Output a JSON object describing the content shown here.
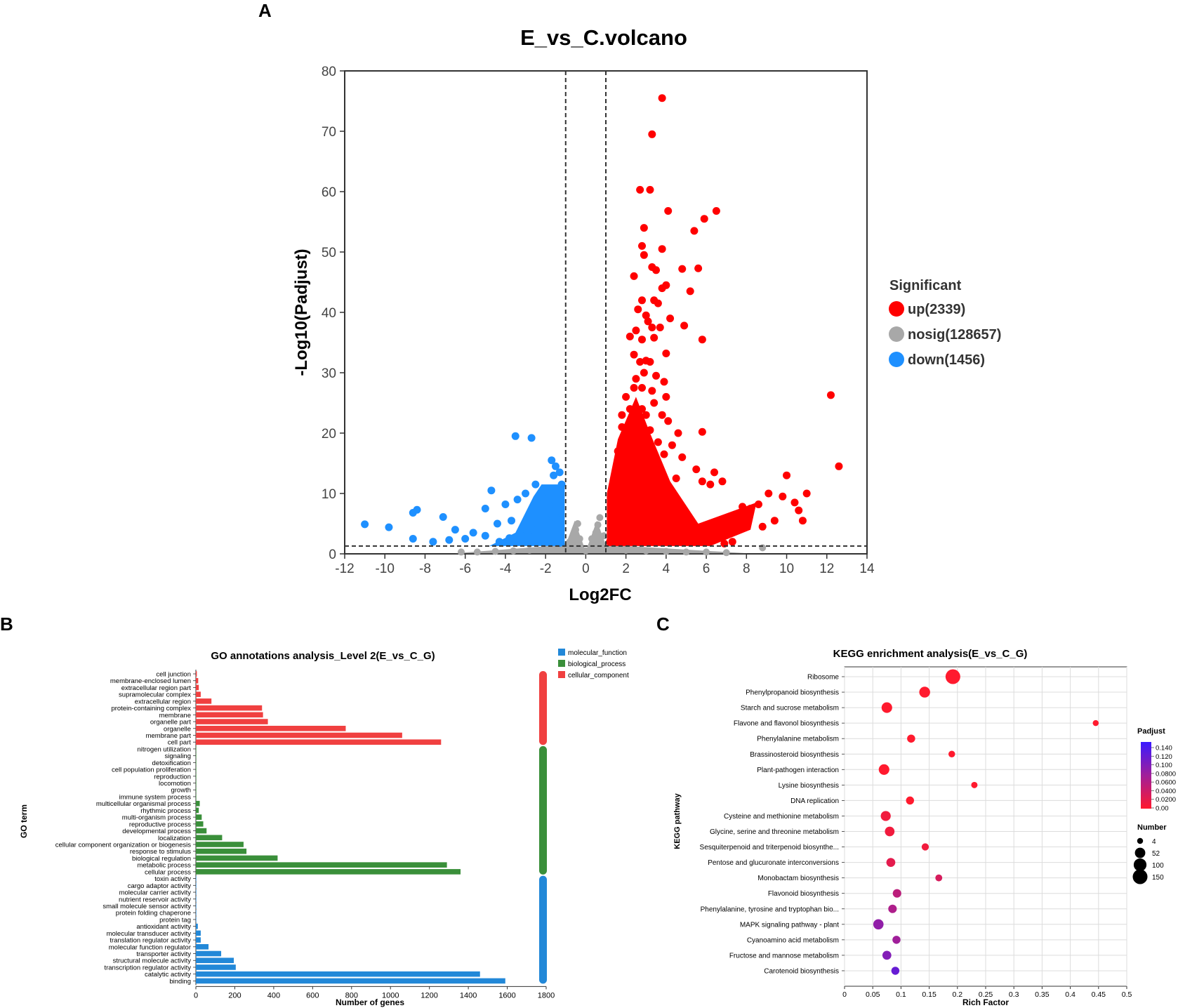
{
  "panels": {
    "a": "A",
    "b": "B",
    "c": "C"
  },
  "chart_data": [
    {
      "type": "scatter",
      "title": "E_vs_C.volcano",
      "xlabel": "Log2FC",
      "ylabel": "-Log10(Padjust)",
      "xlim": [
        -12,
        14
      ],
      "ylim": [
        0,
        80
      ],
      "xticks": [
        -12,
        -10,
        -8,
        -6,
        -4,
        -2,
        0,
        2,
        4,
        6,
        8,
        10,
        12,
        14
      ],
      "yticks": [
        0,
        10,
        20,
        30,
        40,
        50,
        60,
        70,
        80
      ],
      "thresholds": {
        "fc_lines": [
          -1,
          1
        ],
        "padj_line": 1.3
      },
      "legend_title": "Significant",
      "legend": [
        {
          "label": "up(2339)",
          "color": "#ff0000"
        },
        {
          "label": "nosig(128657)",
          "color": "#a8a8a8"
        },
        {
          "label": "down(1456)",
          "color": "#1e90ff"
        }
      ],
      "series": [
        {
          "name": "up",
          "color": "#ff0000",
          "points": [
            [
              3.8,
              75.5
            ],
            [
              3.3,
              69.5
            ],
            [
              2.7,
              60.3
            ],
            [
              3.2,
              60.3
            ],
            [
              4.1,
              56.8
            ],
            [
              6.5,
              56.8
            ],
            [
              5.9,
              55.5
            ],
            [
              2.9,
              54
            ],
            [
              5.4,
              53.5
            ],
            [
              2.8,
              51
            ],
            [
              3.8,
              50.5
            ],
            [
              2.9,
              49.5
            ],
            [
              3.3,
              47.5
            ],
            [
              3.5,
              47
            ],
            [
              4.8,
              47.2
            ],
            [
              5.6,
              47.3
            ],
            [
              2.4,
              46
            ],
            [
              3.8,
              44
            ],
            [
              4.0,
              44.5
            ],
            [
              5.2,
              43.5
            ],
            [
              2.8,
              42
            ],
            [
              3.4,
              42
            ],
            [
              3.6,
              41.5
            ],
            [
              2.6,
              40.5
            ],
            [
              3.0,
              39.5
            ],
            [
              4.2,
              39
            ],
            [
              3.1,
              38.5
            ],
            [
              4.9,
              37.8
            ],
            [
              2.5,
              37
            ],
            [
              3.3,
              37.5
            ],
            [
              3.7,
              37.5
            ],
            [
              5.8,
              35.5
            ],
            [
              2.2,
              36
            ],
            [
              2.8,
              35.5
            ],
            [
              3.4,
              35.8
            ],
            [
              2.4,
              33
            ],
            [
              3.0,
              32
            ],
            [
              4.0,
              33.2
            ],
            [
              2.7,
              31.8
            ],
            [
              3.2,
              31.8
            ],
            [
              2.5,
              29
            ],
            [
              2.9,
              30
            ],
            [
              3.5,
              29.5
            ],
            [
              3.9,
              28.5
            ],
            [
              2.4,
              27.5
            ],
            [
              2.8,
              27.5
            ],
            [
              3.3,
              27
            ],
            [
              2.0,
              26
            ],
            [
              4.0,
              26
            ],
            [
              12.2,
              26.3
            ],
            [
              2.2,
              24
            ],
            [
              2.8,
              24
            ],
            [
              3.4,
              25
            ],
            [
              1.8,
              23
            ],
            [
              3.0,
              23
            ],
            [
              3.8,
              23
            ],
            [
              2.5,
              22
            ],
            [
              4.1,
              22
            ],
            [
              1.8,
              21
            ],
            [
              3.2,
              20.5
            ],
            [
              4.6,
              20
            ],
            [
              5.8,
              20.2
            ],
            [
              2.0,
              19
            ],
            [
              2.8,
              19
            ],
            [
              3.6,
              18.5
            ],
            [
              4.3,
              18
            ],
            [
              1.6,
              17
            ],
            [
              2.4,
              17
            ],
            [
              3.0,
              16
            ],
            [
              3.9,
              16.5
            ],
            [
              4.8,
              16
            ],
            [
              12.6,
              14.5
            ],
            [
              5.5,
              14
            ],
            [
              6.4,
              13.5
            ],
            [
              10.0,
              13
            ],
            [
              4.5,
              12.5
            ],
            [
              5.8,
              12
            ],
            [
              6.2,
              11.5
            ],
            [
              6.8,
              12
            ],
            [
              9.1,
              10
            ],
            [
              11.0,
              10
            ],
            [
              9.8,
              9.5
            ],
            [
              10.4,
              8.5
            ],
            [
              8.6,
              8.2
            ],
            [
              8.2,
              7.5
            ],
            [
              7.6,
              6.5
            ],
            [
              7.2,
              6
            ],
            [
              7.0,
              5
            ],
            [
              8.8,
              4.5
            ],
            [
              9.4,
              5.5
            ],
            [
              10.6,
              7.2
            ],
            [
              10.8,
              5.5
            ],
            [
              7.8,
              7.8
            ],
            [
              6.9,
              3.5
            ],
            [
              6.6,
              4
            ],
            [
              7.3,
              2
            ],
            [
              6.9,
              1.7
            ],
            [
              1.2,
              2
            ],
            [
              1.5,
              5
            ],
            [
              2.0,
              3
            ],
            [
              2.8,
              4
            ],
            [
              3.5,
              6
            ],
            [
              4.2,
              3
            ],
            [
              4.8,
              2.5
            ],
            [
              5.4,
              3
            ],
            [
              6.0,
              2.5
            ]
          ]
        },
        {
          "name": "nosig",
          "color": "#a8a8a8",
          "points": [
            [
              -6.2,
              0.3
            ],
            [
              -5.4,
              0.3
            ],
            [
              -4.5,
              0.4
            ],
            [
              -3.6,
              0.5
            ],
            [
              -2.8,
              0.6
            ],
            [
              -2.0,
              0.7
            ],
            [
              -1.5,
              0.9
            ],
            [
              -1.0,
              1.2
            ],
            [
              -0.8,
              2.0
            ],
            [
              -0.6,
              3.0
            ],
            [
              -0.5,
              4.0
            ],
            [
              -0.4,
              5.0
            ],
            [
              -0.3,
              2.5
            ],
            [
              0,
              0.5
            ],
            [
              0.3,
              2.5
            ],
            [
              0.5,
              3.5
            ],
            [
              0.6,
              4.8
            ],
            [
              0.7,
              6.0
            ],
            [
              0.9,
              3.0
            ],
            [
              1.2,
              1.0
            ],
            [
              2.0,
              0.6
            ],
            [
              3.0,
              0.5
            ],
            [
              4.0,
              0.4
            ],
            [
              5.0,
              0.3
            ],
            [
              6.0,
              0.3
            ],
            [
              7.0,
              0.2
            ],
            [
              8.8,
              1.0
            ]
          ]
        },
        {
          "name": "down",
          "color": "#1e90ff",
          "points": [
            [
              -3.5,
              19.5
            ],
            [
              -2.7,
              19.2
            ],
            [
              -1.7,
              15.5
            ],
            [
              -1.5,
              14.5
            ],
            [
              -1.3,
              13.5
            ],
            [
              -1.6,
              13
            ],
            [
              -2.5,
              11.5
            ],
            [
              -1.2,
              11.5
            ],
            [
              -3.0,
              10
            ],
            [
              -4.7,
              10.5
            ],
            [
              -3.4,
              9
            ],
            [
              -2.2,
              9.5
            ],
            [
              -4.0,
              8.2
            ],
            [
              -5.0,
              7.5
            ],
            [
              -8.4,
              7.3
            ],
            [
              -8.6,
              6.8
            ],
            [
              -7.1,
              6.1
            ],
            [
              -3.7,
              5.5
            ],
            [
              -2.0,
              5.8
            ],
            [
              -4.4,
              5
            ],
            [
              -11.0,
              4.9
            ],
            [
              -9.8,
              4.4
            ],
            [
              -6.5,
              4
            ],
            [
              -5.6,
              3.5
            ],
            [
              -3.2,
              3
            ],
            [
              -5.0,
              3
            ],
            [
              -6.0,
              2.5
            ],
            [
              -8.6,
              2.5
            ],
            [
              -7.6,
              2.0
            ],
            [
              -6.8,
              2.3
            ],
            [
              -4.3,
              2
            ],
            [
              -1.3,
              1.8
            ],
            [
              -1.5,
              6
            ],
            [
              -2.6,
              4
            ],
            [
              -3.8,
              2.6
            ],
            [
              -1.8,
              8.0
            ]
          ]
        }
      ]
    },
    {
      "type": "bar",
      "orientation": "horizontal",
      "title": "GO annotations analysis_Level 2(E_vs_C_G)",
      "xlabel": "Number of genes",
      "ylabel": "GO term",
      "xlim": [
        0,
        1800
      ],
      "xticks": [
        0,
        200,
        400,
        600,
        800,
        1000,
        1200,
        1400,
        1600,
        1800
      ],
      "legend": [
        {
          "label": "molecular_function",
          "color": "#2288d8"
        },
        {
          "label": "biological_process",
          "color": "#3a8f3a"
        },
        {
          "label": "cellular_component",
          "color": "#f04040"
        }
      ],
      "categories": [
        "cell junction",
        "membrane-enclosed lumen",
        "extracellular region part",
        "supramolecular complex",
        "extracellular region",
        "protein-containing complex",
        "membrane",
        "organelle part",
        "organelle",
        "membrane part",
        "cell part",
        "nitrogen utilization",
        "signaling",
        "detoxification",
        "cell population proliferation",
        "reproduction",
        "locomotion",
        "growth",
        "immune system process",
        "multicellular organismal process",
        "rhythmic process",
        "multi-organism process",
        "reproductive process",
        "developmental process",
        "localization",
        "cellular component organization or biogenesis",
        "response to stimulus",
        "biological regulation",
        "metabolic process",
        "cellular process",
        "toxin activity",
        "cargo adaptor activity",
        "molecular carrier activity",
        "nutrient reservoir activity",
        "small molecule sensor activity",
        "protein folding chaperone",
        "protein tag",
        "antioxidant activity",
        "molecular transducer activity",
        "translation regulator activity",
        "molecular function regulator",
        "transporter activity",
        "structural molecule activity",
        "transcription regulator activity",
        "catalytic activity",
        "binding"
      ],
      "groups": [
        "cellular_component",
        "cellular_component",
        "cellular_component",
        "cellular_component",
        "cellular_component",
        "cellular_component",
        "cellular_component",
        "cellular_component",
        "cellular_component",
        "cellular_component",
        "cellular_component",
        "biological_process",
        "biological_process",
        "biological_process",
        "biological_process",
        "biological_process",
        "biological_process",
        "biological_process",
        "biological_process",
        "biological_process",
        "biological_process",
        "biological_process",
        "biological_process",
        "biological_process",
        "biological_process",
        "biological_process",
        "biological_process",
        "biological_process",
        "biological_process",
        "biological_process",
        "molecular_function",
        "molecular_function",
        "molecular_function",
        "molecular_function",
        "molecular_function",
        "molecular_function",
        "molecular_function",
        "molecular_function",
        "molecular_function",
        "molecular_function",
        "molecular_function",
        "molecular_function",
        "molecular_function",
        "molecular_function",
        "molecular_function",
        "molecular_function"
      ],
      "values": [
        5,
        12,
        15,
        25,
        80,
        340,
        345,
        370,
        770,
        1060,
        1260,
        1,
        2,
        1,
        1,
        1,
        2,
        2,
        1,
        20,
        15,
        30,
        38,
        55,
        135,
        245,
        260,
        420,
        1290,
        1360,
        1,
        1,
        1,
        1,
        1,
        1,
        1,
        10,
        25,
        25,
        65,
        130,
        195,
        205,
        1460,
        1590
      ]
    },
    {
      "type": "scatter",
      "title": "KEGG enrichment analysis(E_vs_C_G)",
      "xlabel": "Rich Factor",
      "ylabel": "KEGG pathway",
      "xlim": [
        0,
        0.5
      ],
      "xticks": [
        "0",
        "0.05",
        "0.1",
        "0.15",
        "0.2",
        "0.25",
        "0.3",
        "0.35",
        "0.4",
        "0.45",
        "0.5"
      ],
      "pathways": [
        "Ribosome",
        "Phenylpropanoid biosynthesis",
        "Starch and sucrose metabolism",
        "Flavone and flavonol biosynthesis",
        "Phenylalanine metabolism",
        "Brassinosteroid biosynthesis",
        "Plant-pathogen interaction",
        "Lysine biosynthesis",
        "DNA replication",
        "Cysteine and methionine metabolism",
        "Glycine, serine and threonine metabolism",
        "Sesquiterpenoid and triterpenoid biosynthe...",
        "Pentose and glucuronate interconversions",
        "Monobactam biosynthesis",
        "Flavonoid biosynthesis",
        "Phenylalanine, tyrosine and tryptophan bio...",
        "MAPK signaling pathway - plant",
        "Cyanoamino acid metabolism",
        "Fructose and mannose metabolism",
        "Carotenoid biosynthesis"
      ],
      "rich_factor": [
        0.192,
        0.142,
        0.075,
        0.445,
        0.118,
        0.19,
        0.07,
        0.23,
        0.116,
        0.073,
        0.08,
        0.143,
        0.082,
        0.167,
        0.093,
        0.085,
        0.06,
        0.092,
        0.075,
        0.09
      ],
      "number": [
        150,
        60,
        55,
        4,
        20,
        8,
        55,
        6,
        20,
        45,
        40,
        12,
        30,
        10,
        25,
        25,
        50,
        20,
        30,
        20
      ],
      "padjust": [
        0.0,
        0.0,
        0.0,
        0.0,
        0.0,
        0.0,
        0.0,
        0.0,
        0.0,
        0.01,
        0.01,
        0.01,
        0.02,
        0.03,
        0.05,
        0.06,
        0.08,
        0.07,
        0.09,
        0.11
      ],
      "colorbar_title": "Padjust",
      "colorbar_ticks": [
        "0.140",
        "0.120",
        "0.100",
        "0.0800",
        "0.0600",
        "0.0400",
        "0.0200",
        "0.00"
      ],
      "size_legend_title": "Number",
      "size_legend": [
        4,
        52,
        100,
        150
      ]
    }
  ]
}
